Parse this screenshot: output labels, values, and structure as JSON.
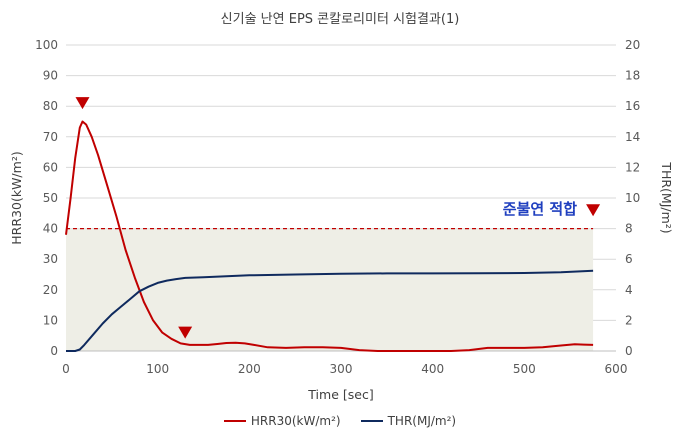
{
  "chart_data": {
    "type": "line",
    "title": "신기술 난연 EPS 콘칼로리미터 시험결과(1)",
    "xlabel": "Time [sec]",
    "ylabel": "HRR30(kW/m²)",
    "y2label": "THR(MJ/m²)",
    "xlim": [
      0,
      600
    ],
    "ylim": [
      0,
      100
    ],
    "y2lim": [
      0,
      20
    ],
    "x_ticks": [
      "0",
      "100",
      "200",
      "300",
      "400",
      "500",
      "600"
    ],
    "y_ticks": [
      "0",
      "10",
      "20",
      "30",
      "40",
      "50",
      "60",
      "70",
      "80",
      "90",
      "100"
    ],
    "y2_ticks": [
      "0",
      "2",
      "4",
      "6",
      "8",
      "10",
      "12",
      "14",
      "16",
      "18",
      "20"
    ],
    "threshold": 40,
    "threshold_end": 575,
    "annotation": "준불연 적합",
    "markers": [
      {
        "x": 18,
        "y": 81
      },
      {
        "x": 130,
        "y": 6
      },
      {
        "x": 575,
        "y": 46
      }
    ],
    "series": [
      {
        "name": "HRR30(kW/m²)",
        "axis": "left",
        "color": "#c00000",
        "x": [
          0,
          5,
          10,
          15,
          18,
          22,
          28,
          35,
          45,
          55,
          65,
          75,
          85,
          95,
          105,
          115,
          125,
          135,
          145,
          155,
          165,
          175,
          185,
          195,
          205,
          220,
          240,
          260,
          280,
          300,
          320,
          340,
          360,
          380,
          400,
          420,
          440,
          460,
          480,
          500,
          520,
          540,
          555,
          565,
          575
        ],
        "values": [
          38,
          50,
          63,
          73,
          75,
          74,
          70,
          64,
          54,
          44,
          33,
          24,
          16,
          10,
          6,
          4,
          2.5,
          2,
          2,
          2,
          2.3,
          2.6,
          2.7,
          2.5,
          2,
          1.2,
          1,
          1.2,
          1.2,
          1,
          0.3,
          0,
          0,
          0,
          0,
          0,
          0.3,
          1,
          1,
          1,
          1.2,
          1.8,
          2.2,
          2.1,
          2
        ]
      },
      {
        "name": "THR(MJ/m²)",
        "axis": "right",
        "color": "#0f2a5e",
        "x": [
          0,
          10,
          15,
          20,
          30,
          40,
          50,
          60,
          70,
          80,
          90,
          100,
          110,
          120,
          130,
          150,
          175,
          200,
          250,
          300,
          350,
          400,
          450,
          500,
          540,
          575
        ],
        "values": [
          0,
          0,
          0.1,
          0.4,
          1.1,
          1.8,
          2.4,
          2.9,
          3.4,
          3.9,
          4.2,
          4.45,
          4.6,
          4.7,
          4.78,
          4.82,
          4.88,
          4.95,
          5.0,
          5.05,
          5.07,
          5.07,
          5.08,
          5.1,
          5.15,
          5.25
        ]
      }
    ]
  }
}
